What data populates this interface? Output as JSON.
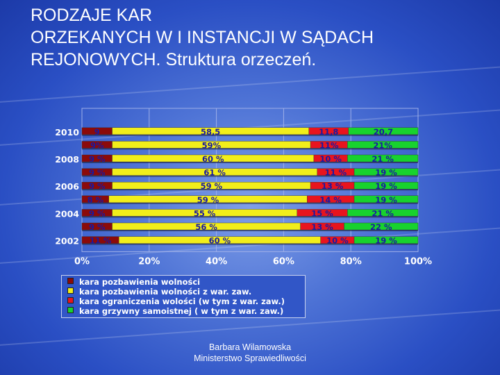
{
  "title": {
    "line1": "RODZAJE KAR",
    "line2": "ORZEKANYCH W I INSTANCJI W SĄDACH",
    "line3": "REJONOWYCH. Struktura orzeczeń."
  },
  "footer": {
    "author": "Barbara Wilamowska",
    "institution": "Ministerstwo Sprawiedliwości"
  },
  "colors": {
    "dark_red": "#8b0a0a",
    "yellow": "#f2ee1a",
    "red": "#e8141e",
    "green": "#18d22e",
    "label": "#1a1aa0"
  },
  "chart_data": {
    "type": "bar",
    "orientation": "horizontal",
    "stacked": "percent",
    "xlim": [
      0,
      100
    ],
    "x_ticks": [
      "0%",
      "20%",
      "40%",
      "60%",
      "80%",
      "100%"
    ],
    "row_labels": [
      "2010",
      "",
      "2008",
      "",
      "2006",
      "",
      "2004",
      "",
      "2002"
    ],
    "series": [
      {
        "name": "kara pozbawienia wolności",
        "color": "#8b0a0a",
        "values": [
          9,
          9,
          9,
          9,
          9,
          8,
          9,
          9,
          11
        ],
        "labels": [
          "9",
          "9%",
          "9 %",
          "9 %",
          "9 %",
          "8 %",
          "9 %",
          "9 %",
          "11 %"
        ]
      },
      {
        "name": "kara pozbawienia wolności z war. zaw.",
        "color": "#f2ee1a",
        "values": [
          58.5,
          59,
          60,
          61,
          59,
          59,
          55,
          56,
          60
        ],
        "labels": [
          "58,5",
          "59%",
          "60 %",
          "61 %",
          "59 %",
          "59 %",
          "55 %",
          "56 %",
          "60 %"
        ]
      },
      {
        "name": "kara ograniczenia wolości  (w tym z war. zaw.)",
        "color": "#e8141e",
        "values": [
          11.8,
          11,
          10,
          11,
          13,
          14,
          15,
          13,
          10
        ],
        "labels": [
          "11,8",
          "11%",
          "10 %",
          "11 %",
          "13 %",
          "14 %",
          "15 %",
          "13 %",
          "10 %"
        ]
      },
      {
        "name": "kara grzywny samoistnej  ( w tym z war. zaw.)",
        "color": "#18d22e",
        "values": [
          20.7,
          21,
          21,
          19,
          19,
          19,
          21,
          22,
          19
        ],
        "labels": [
          "20,7",
          "21%",
          "21 %",
          "19 %",
          "19 %",
          "19 %",
          "21 %",
          "22 %",
          "19 %"
        ]
      }
    ],
    "legend_position": "bottom-left",
    "grid": true
  }
}
